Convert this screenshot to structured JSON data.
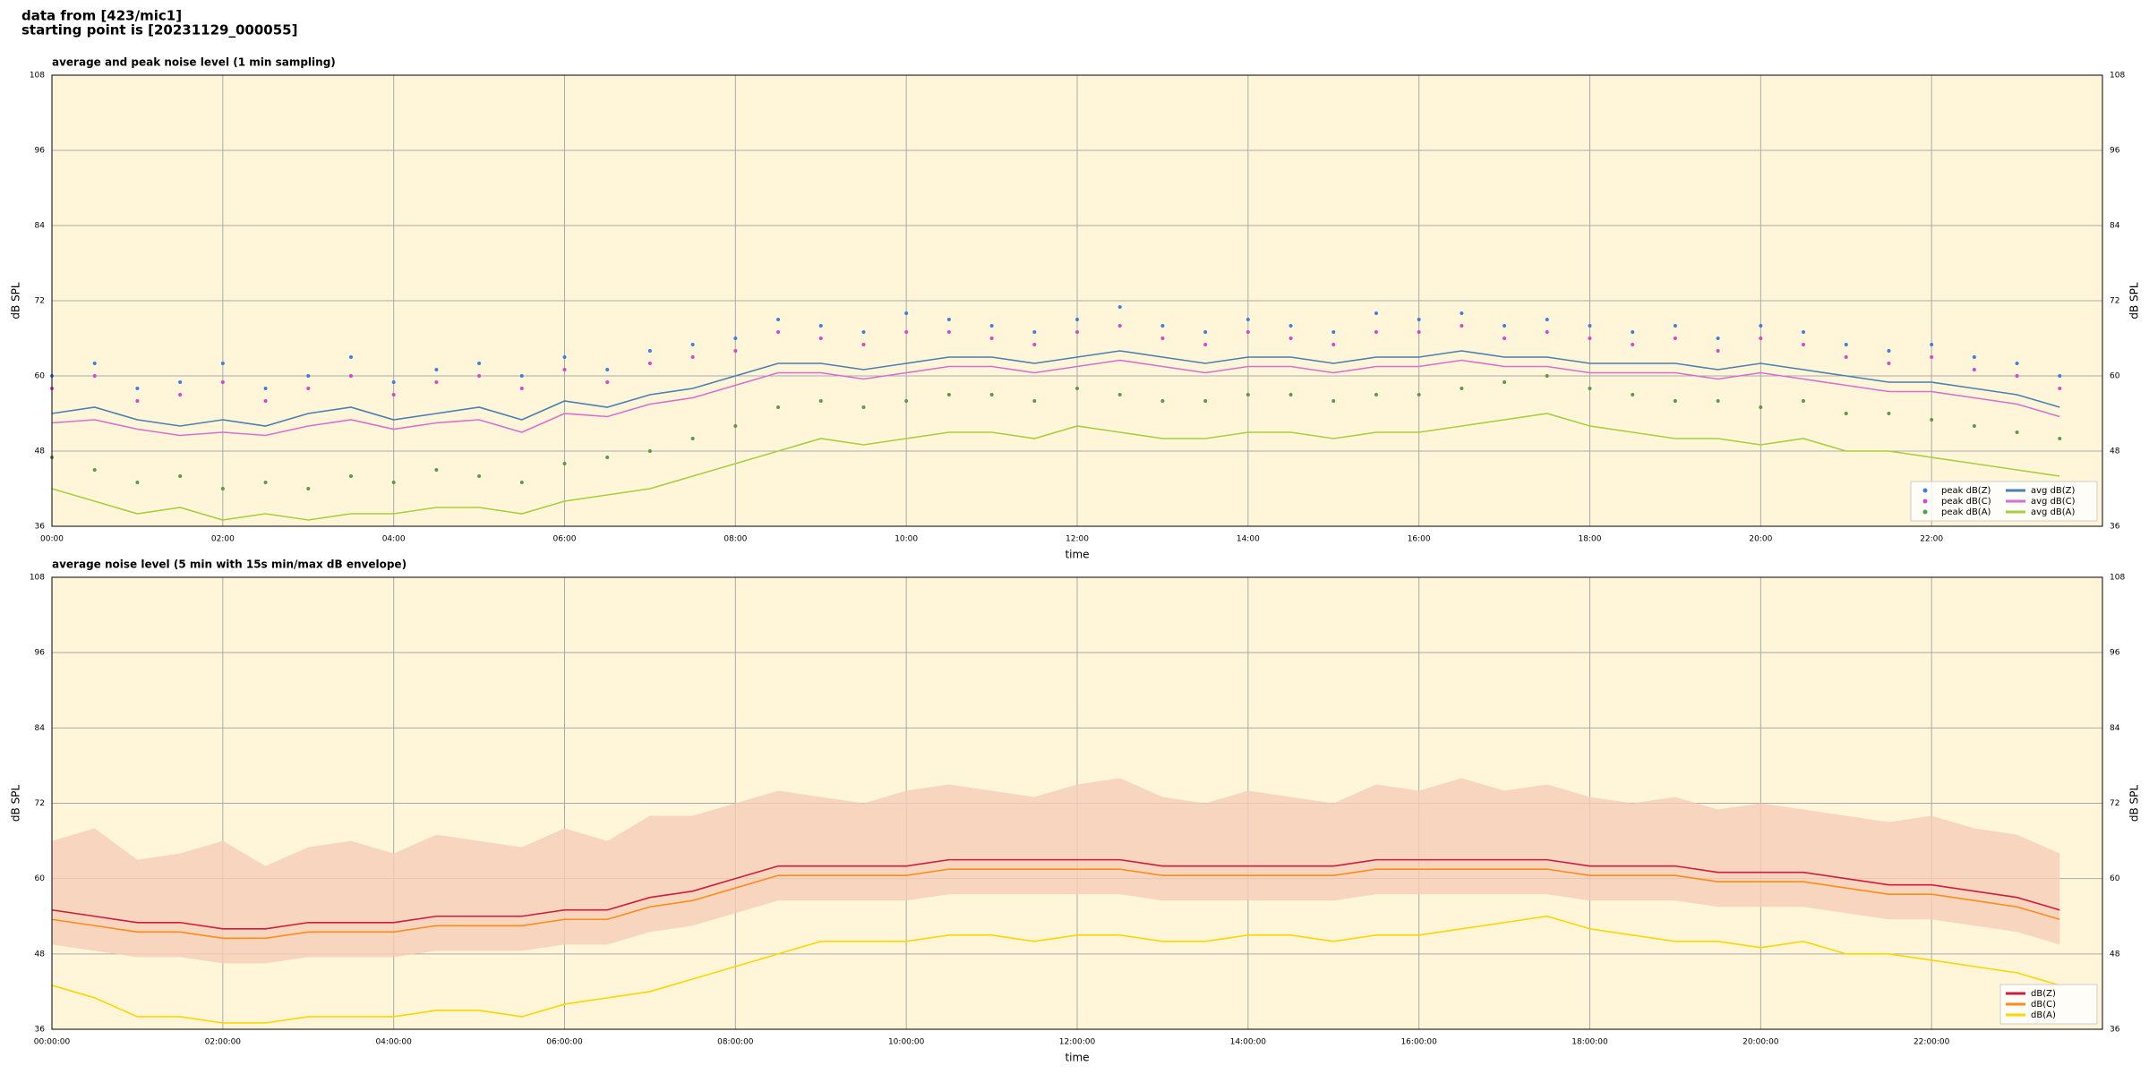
{
  "header": {
    "line1": "data from [423/mic1]",
    "line2": "starting point is [20231129_000055]"
  },
  "chart_data": [
    {
      "type": "line",
      "title": "average and peak noise level (1 min sampling)",
      "x_label": "time",
      "y_label": "dB SPL",
      "xlim": [
        0,
        24
      ],
      "ylim": [
        36,
        108
      ],
      "background": "#fff6d9",
      "grid": true,
      "legend": "lower right",
      "legend_columns": 2,
      "yticks": [
        36,
        48,
        60,
        72,
        84,
        96,
        108
      ],
      "xticks": [
        {
          "value": 0,
          "label": "00:00"
        },
        {
          "value": 2,
          "label": "02:00"
        },
        {
          "value": 4,
          "label": "04:00"
        },
        {
          "value": 6,
          "label": "06:00"
        },
        {
          "value": 8,
          "label": "08:00"
        },
        {
          "value": 10,
          "label": "10:00"
        },
        {
          "value": 12,
          "label": "12:00"
        },
        {
          "value": 14,
          "label": "14:00"
        },
        {
          "value": 16,
          "label": "16:00"
        },
        {
          "value": 18,
          "label": "18:00"
        },
        {
          "value": 20,
          "label": "20:00"
        },
        {
          "value": 22,
          "label": "22:00"
        }
      ],
      "x": [
        0,
        0.5,
        1,
        1.5,
        2,
        2.5,
        3,
        3.5,
        4,
        4.5,
        5,
        5.5,
        6,
        6.5,
        7,
        7.5,
        8,
        8.5,
        9,
        9.5,
        10,
        10.5,
        11,
        11.5,
        12,
        12.5,
        13,
        13.5,
        14,
        14.5,
        15,
        15.5,
        16,
        16.5,
        17,
        17.5,
        18,
        18.5,
        19,
        19.5,
        20,
        20.5,
        21,
        21.5,
        22,
        22.5,
        23,
        23.5
      ],
      "series": [
        {
          "name": "peak dB(Z)",
          "style": "dots",
          "color": "#3d7fe0",
          "values": [
            60,
            62,
            58,
            59,
            62,
            58,
            60,
            63,
            59,
            61,
            62,
            60,
            63,
            61,
            64,
            65,
            66,
            69,
            68,
            67,
            70,
            69,
            68,
            67,
            69,
            71,
            68,
            67,
            69,
            68,
            67,
            70,
            69,
            70,
            68,
            69,
            68,
            67,
            68,
            66,
            68,
            67,
            65,
            64,
            65,
            63,
            62,
            60
          ]
        },
        {
          "name": "peak dB(C)",
          "style": "dots",
          "color": "#d946c8",
          "values": [
            58,
            60,
            56,
            57,
            59,
            56,
            58,
            60,
            57,
            59,
            60,
            58,
            61,
            59,
            62,
            63,
            64,
            67,
            66,
            65,
            67,
            67,
            66,
            65,
            67,
            68,
            66,
            65,
            67,
            66,
            65,
            67,
            67,
            68,
            66,
            67,
            66,
            65,
            66,
            64,
            66,
            65,
            63,
            62,
            63,
            61,
            60,
            58
          ]
        },
        {
          "name": "peak dB(A)",
          "style": "dots",
          "color": "#5a9a4a",
          "values": [
            47,
            45,
            43,
            44,
            42,
            43,
            42,
            44,
            43,
            45,
            44,
            43,
            46,
            47,
            48,
            50,
            52,
            55,
            56,
            55,
            56,
            57,
            57,
            56,
            58,
            57,
            56,
            56,
            57,
            57,
            56,
            57,
            57,
            58,
            59,
            60,
            58,
            57,
            56,
            56,
            55,
            56,
            54,
            54,
            53,
            52,
            51,
            50
          ]
        },
        {
          "name": "avg dB(Z)",
          "style": "line",
          "color": "#4a7fb0",
          "values": [
            54,
            55,
            53,
            52,
            53,
            52,
            54,
            55,
            53,
            54,
            55,
            53,
            56,
            55,
            57,
            58,
            60,
            62,
            62,
            61,
            62,
            63,
            63,
            62,
            63,
            64,
            63,
            62,
            63,
            63,
            62,
            63,
            63,
            64,
            63,
            63,
            62,
            62,
            62,
            61,
            62,
            61,
            60,
            59,
            59,
            58,
            57,
            55
          ]
        },
        {
          "name": "avg dB(C)",
          "style": "line",
          "color": "#d86fd0",
          "values": [
            52.5,
            53,
            51.5,
            50.5,
            51,
            50.5,
            52,
            53,
            51.5,
            52.5,
            53,
            51,
            54,
            53.5,
            55.5,
            56.5,
            58.5,
            60.5,
            60.5,
            59.5,
            60.5,
            61.5,
            61.5,
            60.5,
            61.5,
            62.5,
            61.5,
            60.5,
            61.5,
            61.5,
            60.5,
            61.5,
            61.5,
            62.5,
            61.5,
            61.5,
            60.5,
            60.5,
            60.5,
            59.5,
            60.5,
            59.5,
            58.5,
            57.5,
            57.5,
            56.5,
            55.5,
            53.5
          ]
        },
        {
          "name": "avg dB(A)",
          "style": "line",
          "color": "#a6cf3e",
          "values": [
            42,
            40,
            38,
            39,
            37,
            38,
            37,
            38,
            38,
            39,
            39,
            38,
            40,
            41,
            42,
            44,
            46,
            48,
            50,
            49,
            50,
            51,
            51,
            50,
            52,
            51,
            50,
            50,
            51,
            51,
            50,
            51,
            51,
            52,
            53,
            54,
            52,
            51,
            50,
            50,
            49,
            50,
            48,
            48,
            47,
            46,
            45,
            44
          ]
        }
      ]
    },
    {
      "type": "line",
      "title": "average noise level (5 min with 15s min/max dB envelope)",
      "x_label": "time",
      "y_label": "dB SPL",
      "xlim": [
        0,
        24
      ],
      "ylim": [
        36,
        108
      ],
      "background": "#fff6d9",
      "grid": true,
      "legend": "lower right",
      "legend_columns": 1,
      "yticks": [
        36,
        48,
        60,
        72,
        84,
        96,
        108
      ],
      "xticks": [
        {
          "value": 0,
          "label": "00:00:00"
        },
        {
          "value": 2,
          "label": "02:00:00"
        },
        {
          "value": 4,
          "label": "04:00:00"
        },
        {
          "value": 6,
          "label": "06:00:00"
        },
        {
          "value": 8,
          "label": "08:00:00"
        },
        {
          "value": 10,
          "label": "10:00:00"
        },
        {
          "value": 12,
          "label": "12:00:00"
        },
        {
          "value": 14,
          "label": "14:00:00"
        },
        {
          "value": 16,
          "label": "16:00:00"
        },
        {
          "value": 18,
          "label": "18:00:00"
        },
        {
          "value": 20,
          "label": "20:00:00"
        },
        {
          "value": 22,
          "label": "22:00:00"
        }
      ],
      "x": [
        0,
        0.5,
        1,
        1.5,
        2,
        2.5,
        3,
        3.5,
        4,
        4.5,
        5,
        5.5,
        6,
        6.5,
        7,
        7.5,
        8,
        8.5,
        9,
        9.5,
        10,
        10.5,
        11,
        11.5,
        12,
        12.5,
        13,
        13.5,
        14,
        14.5,
        15,
        15.5,
        16,
        16.5,
        17,
        17.5,
        18,
        18.5,
        19,
        19.5,
        20,
        20.5,
        21,
        21.5,
        22,
        22.5,
        23,
        23.5
      ],
      "envelope": {
        "color": "#f6cdb8",
        "low": [
          49.5,
          48.5,
          47.5,
          47.5,
          46.5,
          46.5,
          47.5,
          47.5,
          47.5,
          48.5,
          48.5,
          48.5,
          49.5,
          49.5,
          51.5,
          52.5,
          54.5,
          56.5,
          56.5,
          56.5,
          56.5,
          57.5,
          57.5,
          57.5,
          57.5,
          57.5,
          56.5,
          56.5,
          56.5,
          56.5,
          56.5,
          57.5,
          57.5,
          57.5,
          57.5,
          57.5,
          56.5,
          56.5,
          56.5,
          55.5,
          55.5,
          55.5,
          54.5,
          53.5,
          53.5,
          52.5,
          51.5,
          49.5
        ],
        "high": [
          66,
          68,
          63,
          64,
          66,
          62,
          65,
          66,
          64,
          67,
          66,
          65,
          68,
          66,
          70,
          70,
          72,
          74,
          73,
          72,
          74,
          75,
          74,
          73,
          75,
          76,
          73,
          72,
          74,
          73,
          72,
          75,
          74,
          76,
          74,
          75,
          73,
          72,
          73,
          71,
          72,
          71,
          70,
          69,
          70,
          68,
          67,
          64
        ]
      },
      "series": [
        {
          "name": "dB(Z)",
          "style": "line",
          "color": "#d01c3c",
          "values": [
            55,
            54,
            53,
            53,
            52,
            52,
            53,
            53,
            53,
            54,
            54,
            54,
            55,
            55,
            57,
            58,
            60,
            62,
            62,
            62,
            62,
            63,
            63,
            63,
            63,
            63,
            62,
            62,
            62,
            62,
            62,
            63,
            63,
            63,
            63,
            63,
            62,
            62,
            62,
            61,
            61,
            61,
            60,
            59,
            59,
            58,
            57,
            55
          ]
        },
        {
          "name": "dB(C)",
          "style": "line",
          "color": "#ff8c1a",
          "values": [
            53.5,
            52.5,
            51.5,
            51.5,
            50.5,
            50.5,
            51.5,
            51.5,
            51.5,
            52.5,
            52.5,
            52.5,
            53.5,
            53.5,
            55.5,
            56.5,
            58.5,
            60.5,
            60.5,
            60.5,
            60.5,
            61.5,
            61.5,
            61.5,
            61.5,
            61.5,
            60.5,
            60.5,
            60.5,
            60.5,
            60.5,
            61.5,
            61.5,
            61.5,
            61.5,
            61.5,
            60.5,
            60.5,
            60.5,
            59.5,
            59.5,
            59.5,
            58.5,
            57.5,
            57.5,
            56.5,
            55.5,
            53.5
          ]
        },
        {
          "name": "dB(A)",
          "style": "line",
          "color": "#ffd500",
          "values": [
            43,
            41,
            38,
            38,
            37,
            37,
            38,
            38,
            38,
            39,
            39,
            38,
            40,
            41,
            42,
            44,
            46,
            48,
            50,
            50,
            50,
            51,
            51,
            50,
            51,
            51,
            50,
            50,
            51,
            51,
            50,
            51,
            51,
            52,
            53,
            54,
            52,
            51,
            50,
            50,
            49,
            50,
            48,
            48,
            47,
            46,
            45,
            43
          ]
        }
      ]
    }
  ]
}
